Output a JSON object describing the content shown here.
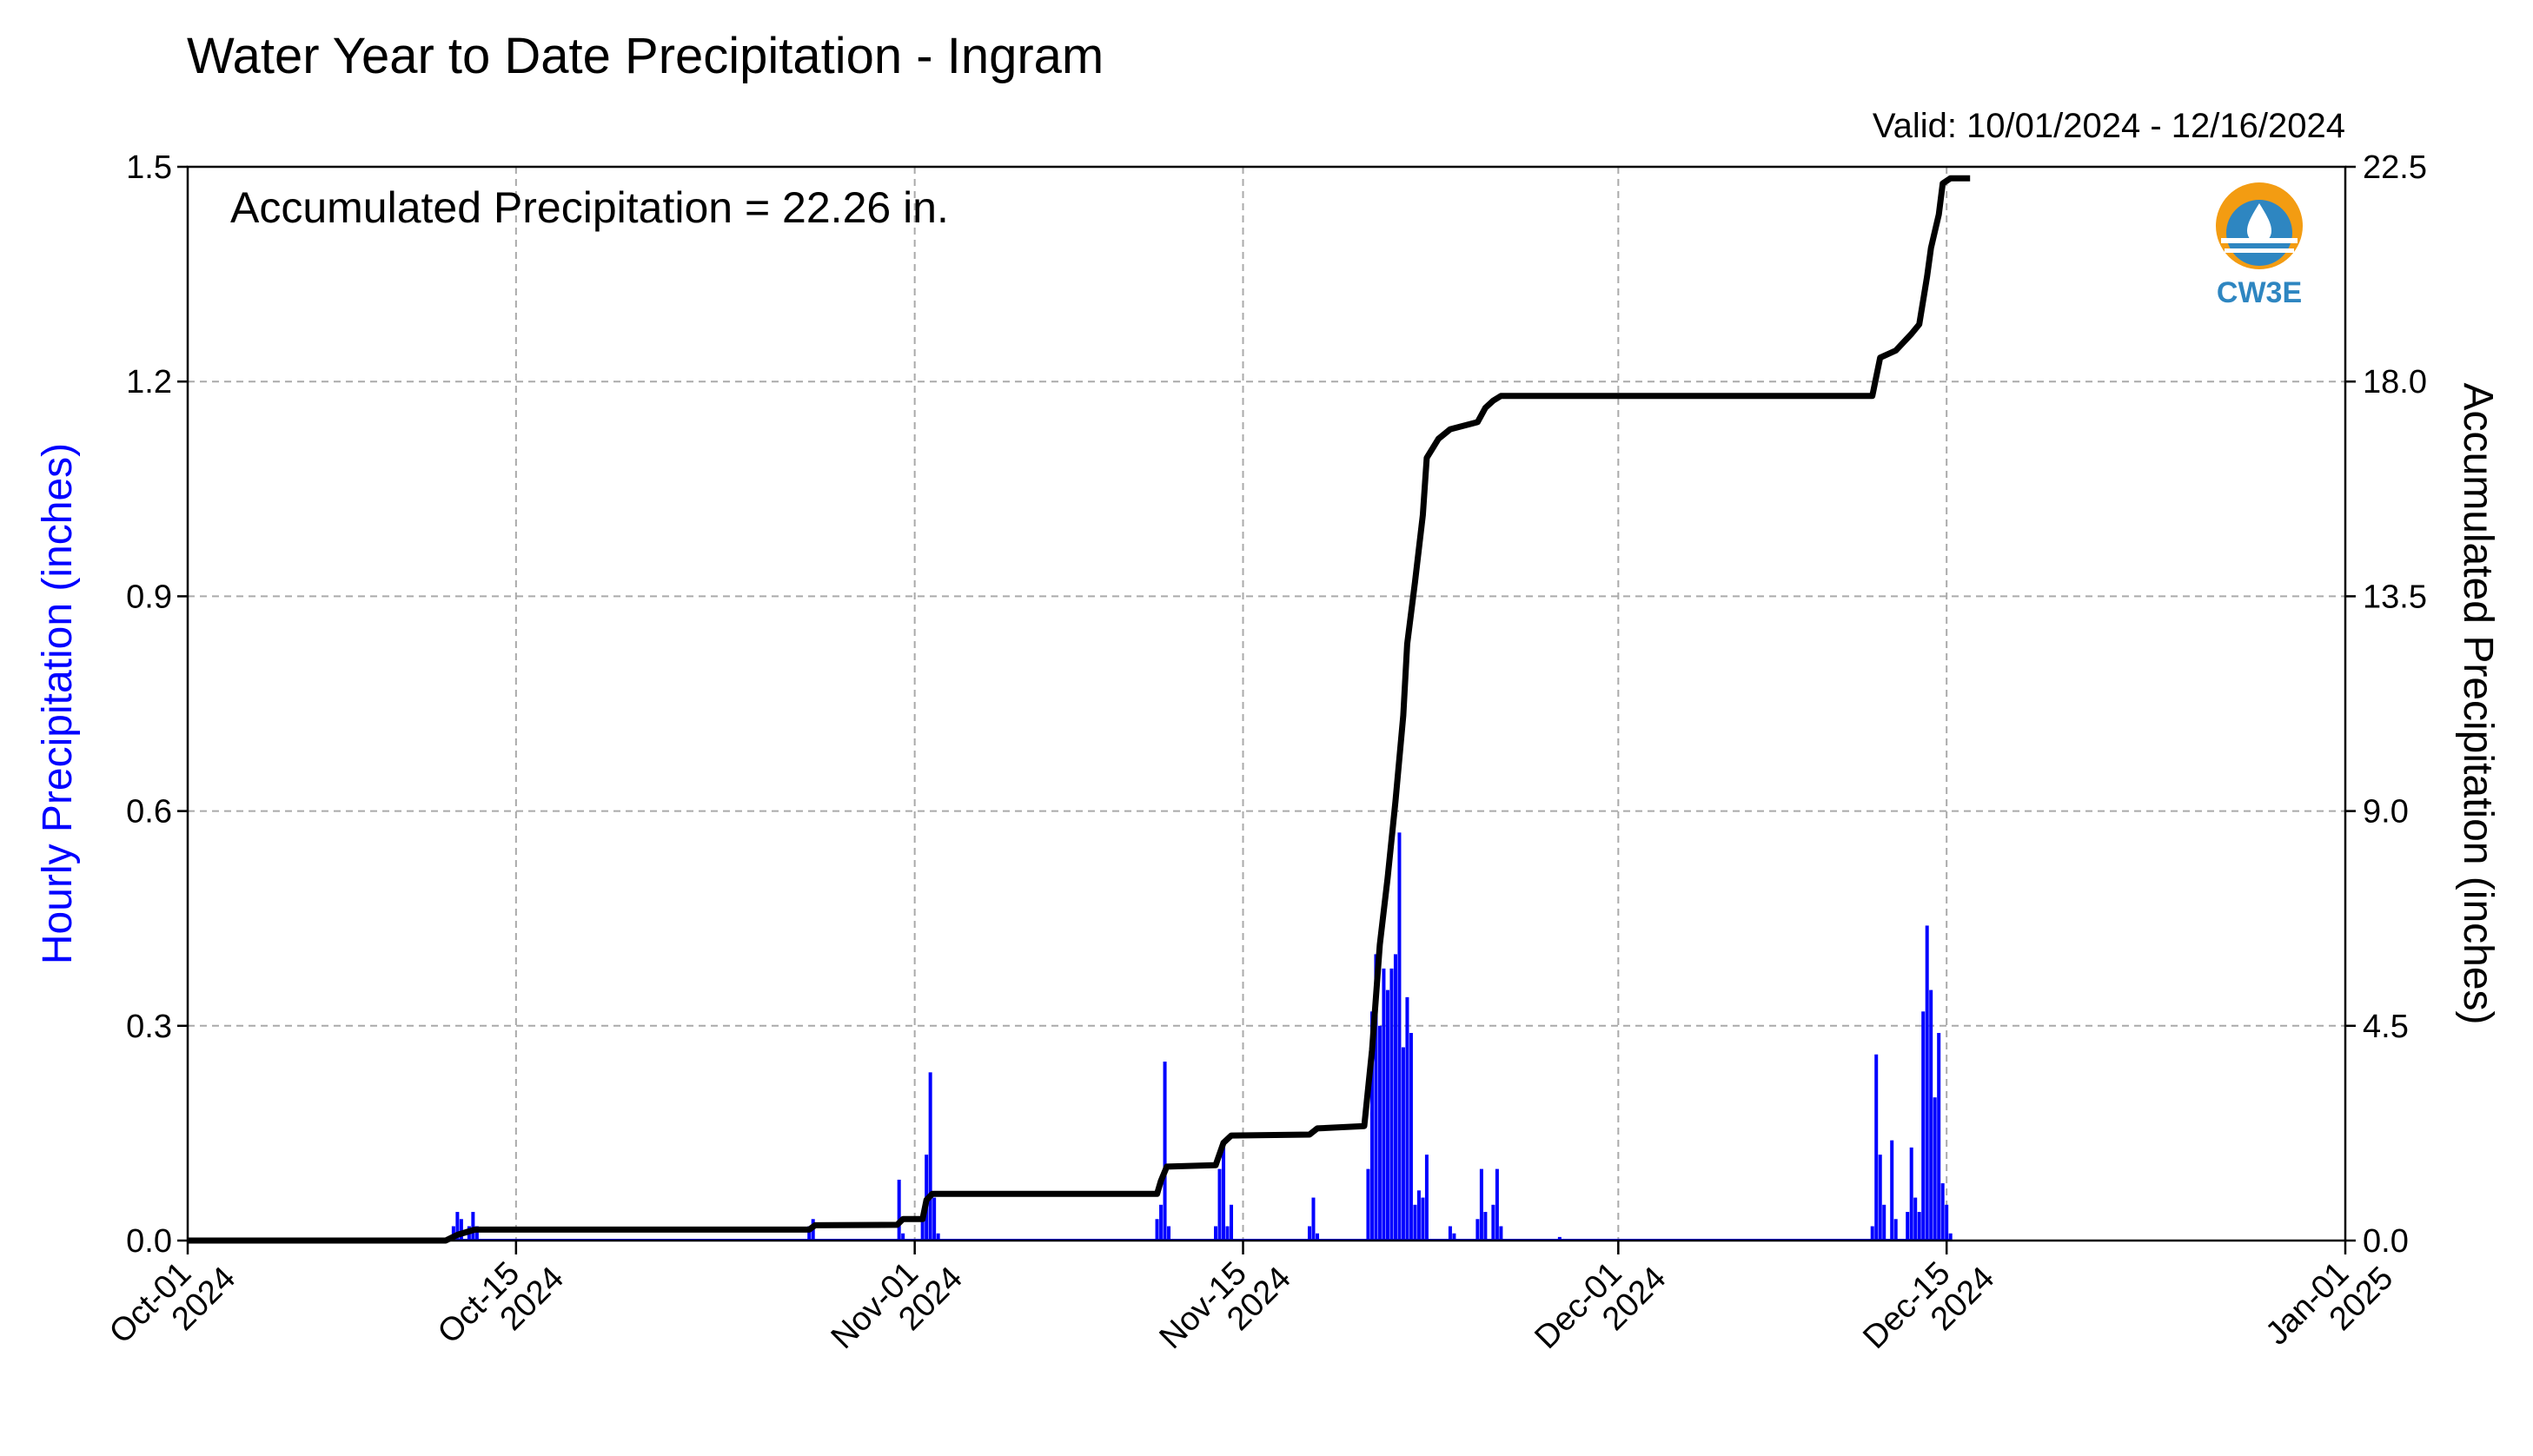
{
  "chart_data": {
    "type": "bar",
    "title": "Water Year to Date Precipitation - Ingram",
    "subtitle": "Valid: 10/01/2024 - 12/16/2024",
    "annotation": "Accumulated Precipitation = 22.26 in.",
    "ylabel": "Hourly Precipitation (inches)",
    "ylabel_right": "Accumulated Precipitation (inches)",
    "ylim": [
      0,
      1.5
    ],
    "ylim_right": [
      0,
      22.5
    ],
    "yticks": [
      "0.0",
      "0.3",
      "0.6",
      "0.9",
      "1.2",
      "1.5"
    ],
    "yticks_right": [
      "0.0",
      "4.5",
      "9.0",
      "13.5",
      "18.0",
      "22.5"
    ],
    "xlim": [
      "2024-10-01",
      "2025-01-01"
    ],
    "xticks": [
      {
        "date": "2024-10-01",
        "line1": "Oct-01",
        "line2": "2024"
      },
      {
        "date": "2024-10-15",
        "line1": "Oct-15",
        "line2": "2024"
      },
      {
        "date": "2024-11-01",
        "line1": "Nov-01",
        "line2": "2024"
      },
      {
        "date": "2024-11-15",
        "line1": "Nov-15",
        "line2": "2024"
      },
      {
        "date": "2024-12-01",
        "line1": "Dec-01",
        "line2": "2024"
      },
      {
        "date": "2024-12-15",
        "line1": "Dec-15",
        "line2": "2024"
      },
      {
        "date": "2025-01-01",
        "line1": "Jan-01",
        "line2": "2025"
      }
    ],
    "grid": true,
    "bar_color": "#0000ff",
    "line_color": "#000000",
    "series": [
      {
        "name": "Hourly Precipitation",
        "type": "bar",
        "axis": "left",
        "points": [
          [
            "2024-10-12 08:00",
            0.02
          ],
          [
            "2024-10-12 12:00",
            0.04
          ],
          [
            "2024-10-12 16:00",
            0.03
          ],
          [
            "2024-10-13 00:00",
            0.02
          ],
          [
            "2024-10-13 04:00",
            0.04
          ],
          [
            "2024-10-13 08:00",
            0.02
          ],
          [
            "2024-10-27 12:00",
            0.02
          ],
          [
            "2024-10-27 16:00",
            0.03
          ],
          [
            "2024-10-31 08:00",
            0.085
          ],
          [
            "2024-10-31 12:00",
            0.01
          ],
          [
            "2024-11-01 08:00",
            0.03
          ],
          [
            "2024-11-01 12:00",
            0.12
          ],
          [
            "2024-11-01 16:00",
            0.235
          ],
          [
            "2024-11-01 20:00",
            0.06
          ],
          [
            "2024-11-02 00:00",
            0.01
          ],
          [
            "2024-11-11 08:00",
            0.03
          ],
          [
            "2024-11-11 12:00",
            0.05
          ],
          [
            "2024-11-11 16:00",
            0.25
          ],
          [
            "2024-11-11 20:00",
            0.02
          ],
          [
            "2024-11-13 20:00",
            0.02
          ],
          [
            "2024-11-14 00:00",
            0.1
          ],
          [
            "2024-11-14 04:00",
            0.135
          ],
          [
            "2024-11-14 08:00",
            0.02
          ],
          [
            "2024-11-14 12:00",
            0.05
          ],
          [
            "2024-11-17 20:00",
            0.02
          ],
          [
            "2024-11-18 00:00",
            0.06
          ],
          [
            "2024-11-18 04:00",
            0.01
          ],
          [
            "2024-11-20 08:00",
            0.1
          ],
          [
            "2024-11-20 12:00",
            0.32
          ],
          [
            "2024-11-20 16:00",
            0.4
          ],
          [
            "2024-11-20 20:00",
            0.3
          ],
          [
            "2024-11-21 00:00",
            0.38
          ],
          [
            "2024-11-21 04:00",
            0.35
          ],
          [
            "2024-11-21 08:00",
            0.38
          ],
          [
            "2024-11-21 12:00",
            0.4
          ],
          [
            "2024-11-21 16:00",
            0.57
          ],
          [
            "2024-11-21 20:00",
            0.27
          ],
          [
            "2024-11-22 00:00",
            0.34
          ],
          [
            "2024-11-22 04:00",
            0.29
          ],
          [
            "2024-11-22 08:00",
            0.05
          ],
          [
            "2024-11-22 12:00",
            0.07
          ],
          [
            "2024-11-22 16:00",
            0.06
          ],
          [
            "2024-11-22 20:00",
            0.12
          ],
          [
            "2024-11-23 20:00",
            0.02
          ],
          [
            "2024-11-24 00:00",
            0.01
          ],
          [
            "2024-11-25 00:00",
            0.03
          ],
          [
            "2024-11-25 04:00",
            0.1
          ],
          [
            "2024-11-25 08:00",
            0.04
          ],
          [
            "2024-11-25 16:00",
            0.05
          ],
          [
            "2024-11-25 20:00",
            0.1
          ],
          [
            "2024-11-26 00:00",
            0.02
          ],
          [
            "2024-11-28 12:00",
            0.005
          ],
          [
            "2024-12-11 20:00",
            0.02
          ],
          [
            "2024-12-12 00:00",
            0.26
          ],
          [
            "2024-12-12 04:00",
            0.12
          ],
          [
            "2024-12-12 08:00",
            0.05
          ],
          [
            "2024-12-12 16:00",
            0.14
          ],
          [
            "2024-12-12 20:00",
            0.03
          ],
          [
            "2024-12-13 08:00",
            0.04
          ],
          [
            "2024-12-13 12:00",
            0.13
          ],
          [
            "2024-12-13 16:00",
            0.06
          ],
          [
            "2024-12-13 20:00",
            0.04
          ],
          [
            "2024-12-14 00:00",
            0.32
          ],
          [
            "2024-12-14 04:00",
            0.44
          ],
          [
            "2024-12-14 08:00",
            0.35
          ],
          [
            "2024-12-14 12:00",
            0.2
          ],
          [
            "2024-12-14 16:00",
            0.29
          ],
          [
            "2024-12-14 20:00",
            0.08
          ],
          [
            "2024-12-15 00:00",
            0.05
          ],
          [
            "2024-12-15 04:00",
            0.01
          ]
        ]
      },
      {
        "name": "Accumulated Precipitation",
        "type": "line",
        "axis": "right",
        "points": [
          [
            "2024-10-01",
            0.0
          ],
          [
            "2024-10-12",
            0.0
          ],
          [
            "2024-10-12 12:00",
            0.12
          ],
          [
            "2024-10-13 06:00",
            0.23
          ],
          [
            "2024-10-27 12:00",
            0.23
          ],
          [
            "2024-10-27 18:00",
            0.32
          ],
          [
            "2024-10-31 06:00",
            0.33
          ],
          [
            "2024-10-31 12:00",
            0.45
          ],
          [
            "2024-11-01 08:00",
            0.45
          ],
          [
            "2024-11-01 12:00",
            0.85
          ],
          [
            "2024-11-01 18:00",
            0.98
          ],
          [
            "2024-11-11 08:00",
            0.98
          ],
          [
            "2024-11-11 12:00",
            1.25
          ],
          [
            "2024-11-11 18:00",
            1.55
          ],
          [
            "2024-11-13 20:00",
            1.58
          ],
          [
            "2024-11-14 04:00",
            2.05
          ],
          [
            "2024-11-14 12:00",
            2.2
          ],
          [
            "2024-11-17 20:00",
            2.22
          ],
          [
            "2024-11-18 04:00",
            2.35
          ],
          [
            "2024-11-20 04:00",
            2.4
          ],
          [
            "2024-11-20 12:00",
            4.0
          ],
          [
            "2024-11-20 20:00",
            6.2
          ],
          [
            "2024-11-21 04:00",
            7.6
          ],
          [
            "2024-11-21 12:00",
            9.2
          ],
          [
            "2024-11-21 20:00",
            11.0
          ],
          [
            "2024-11-22 00:00",
            12.5
          ],
          [
            "2024-11-22 08:00",
            13.8
          ],
          [
            "2024-11-22 16:00",
            15.2
          ],
          [
            "2024-11-22 20:00",
            16.4
          ],
          [
            "2024-11-23 08:00",
            16.8
          ],
          [
            "2024-11-23 20:00",
            17.0
          ],
          [
            "2024-11-25 00:00",
            17.15
          ],
          [
            "2024-11-25 08:00",
            17.45
          ],
          [
            "2024-11-25 16:00",
            17.6
          ],
          [
            "2024-11-26 00:00",
            17.7
          ],
          [
            "2024-12-11 20:00",
            17.7
          ],
          [
            "2024-12-12 04:00",
            18.5
          ],
          [
            "2024-12-12 20:00",
            18.65
          ],
          [
            "2024-12-13 12:00",
            19.0
          ],
          [
            "2024-12-13 20:00",
            19.2
          ],
          [
            "2024-12-14 04:00",
            20.2
          ],
          [
            "2024-12-14 08:00",
            20.8
          ],
          [
            "2024-12-14 16:00",
            21.5
          ],
          [
            "2024-12-14 20:00",
            22.15
          ],
          [
            "2024-12-15 04:00",
            22.26
          ],
          [
            "2024-12-16",
            22.26
          ]
        ]
      }
    ]
  },
  "logo": {
    "text": "CW3E",
    "color": "#2e86c1",
    "accent": "#f39c12"
  }
}
